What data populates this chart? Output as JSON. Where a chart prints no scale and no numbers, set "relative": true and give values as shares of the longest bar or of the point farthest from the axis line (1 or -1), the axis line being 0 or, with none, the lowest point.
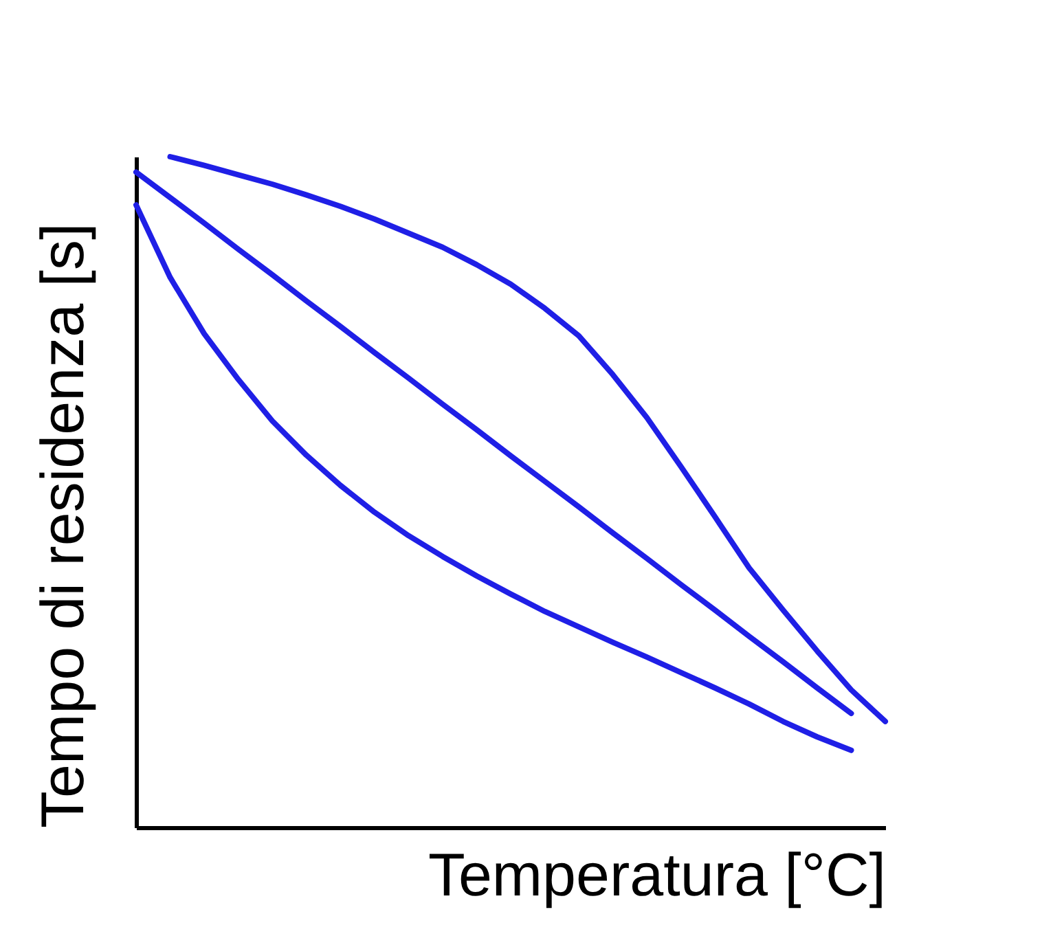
{
  "chart_data": {
    "type": "line",
    "relative": true,
    "xlabel": "Temperatura [°C]",
    "ylabel": "Tempo di residenza [s]",
    "grid": false,
    "legend": false,
    "categories": [
      null,
      null,
      null,
      null,
      null,
      null,
      null,
      null,
      null,
      null,
      null,
      null,
      null,
      null,
      null,
      null,
      null,
      null,
      null,
      null,
      null,
      null,
      null
    ],
    "series": [
      {
        "color": "#1f1fe6",
        "values": [
          null,
          1.0,
          0.987,
          0.973,
          0.959,
          0.943,
          0.926,
          0.907,
          0.886,
          0.865,
          0.839,
          0.81,
          0.774,
          0.733,
          0.675,
          0.611,
          0.538,
          0.463,
          0.387,
          0.324,
          0.263,
          0.205,
          0.158
        ]
      },
      {
        "color": "#1f1fe6",
        "values": [
          0.977,
          0.939,
          0.901,
          0.862,
          0.824,
          0.785,
          0.747,
          0.708,
          0.67,
          0.631,
          0.593,
          0.554,
          0.516,
          0.478,
          0.439,
          0.401,
          0.362,
          0.324,
          0.285,
          0.247,
          0.208,
          0.17,
          null
        ]
      },
      {
        "color": "#1f1fe6",
        "values": [
          0.928,
          0.82,
          0.736,
          0.668,
          0.606,
          0.555,
          0.51,
          0.47,
          0.435,
          0.404,
          0.375,
          0.348,
          0.322,
          0.299,
          0.276,
          0.254,
          0.231,
          0.208,
          0.184,
          0.158,
          0.135,
          0.115,
          null
        ]
      }
    ]
  }
}
